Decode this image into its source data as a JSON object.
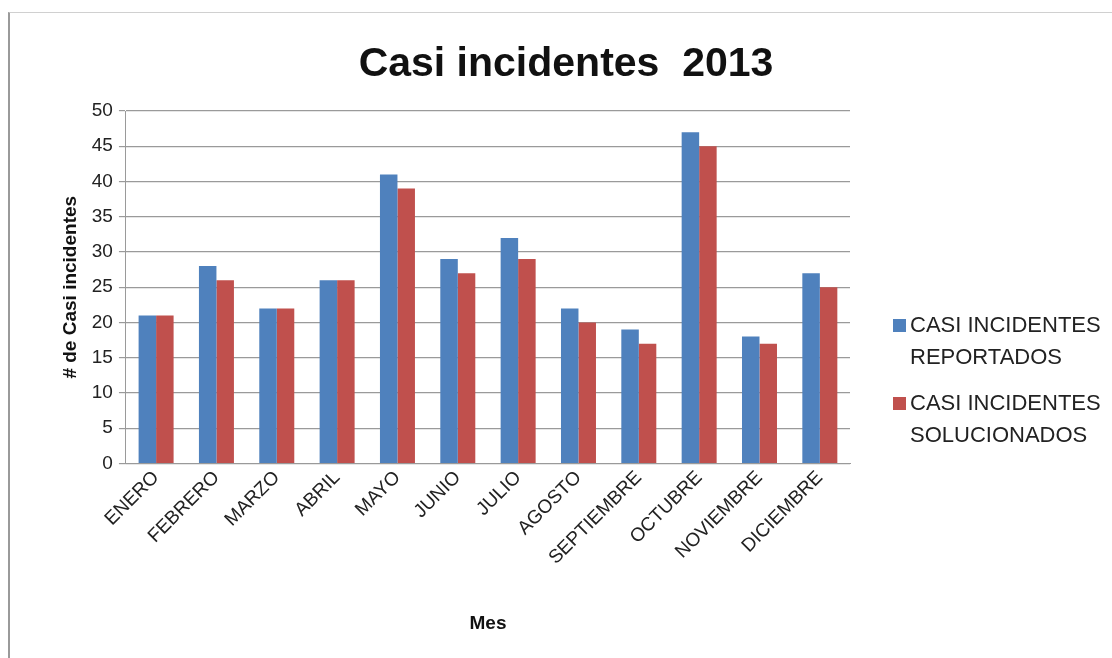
{
  "chart_data": {
    "type": "bar",
    "title": "Casi incidentes  2013",
    "xlabel": "Mes",
    "ylabel": "# de Casi incidentes",
    "categories": [
      "ENERO",
      "FEBRERO",
      "MARZO",
      "ABRIL",
      "MAYO",
      "JUNIO",
      "JULIO",
      "AGOSTO",
      "SEPTIEMBRE",
      "OCTUBRE",
      "NOVIEMBRE",
      "DICIEMBRE"
    ],
    "series": [
      {
        "name": "CASI INCIDENTES REPORTADOS",
        "color": "#4f81bd",
        "values": [
          21,
          28,
          22,
          26,
          41,
          29,
          32,
          22,
          19,
          47,
          18,
          27
        ]
      },
      {
        "name": "CASI INCIDENTES SOLUCIONADOS",
        "color": "#c0504d",
        "values": [
          21,
          26,
          22,
          26,
          39,
          27,
          29,
          20,
          17,
          45,
          17,
          25
        ]
      }
    ],
    "ylim": [
      0,
      50
    ],
    "yticks": [
      0,
      5,
      10,
      15,
      20,
      25,
      30,
      35,
      40,
      45,
      50
    ],
    "grid": "y",
    "legend": "right"
  }
}
